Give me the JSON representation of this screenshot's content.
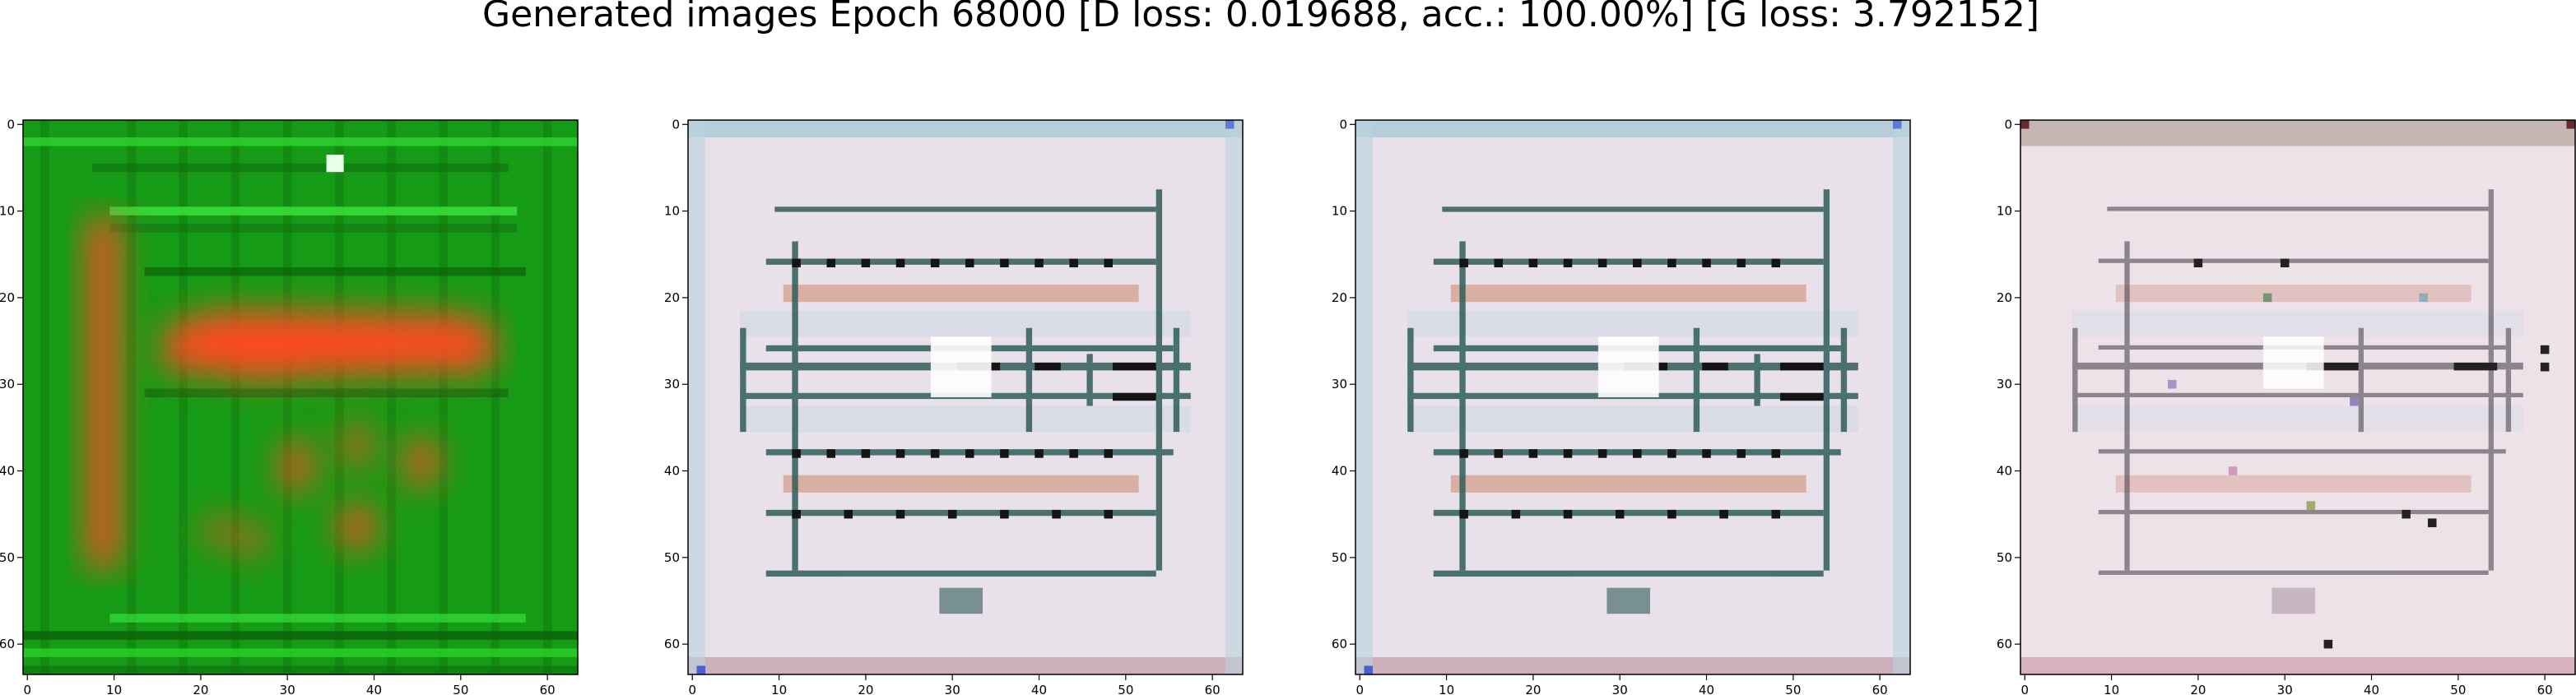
{
  "figure": {
    "title": "Generated images Epoch 68000 [D loss: 0.019688, acc.: 100.00%] [G loss: 3.792152]"
  },
  "axes_ticks": {
    "x": [
      "0",
      "10",
      "20",
      "30",
      "40",
      "50",
      "60"
    ],
    "y": [
      "0",
      "10",
      "20",
      "30",
      "40",
      "50",
      "60"
    ]
  },
  "panels": [
    {
      "content": "generated-image-green-red",
      "palette": {
        "background": "#169b16",
        "shapes": "#ff4a20",
        "stripes": "#2ed42e"
      }
    },
    {
      "content": "generated-image-floorplan-pale",
      "palette": {
        "background": "#e9e1ea",
        "grid": "#2f5d5a",
        "accent": "#d29a86"
      }
    },
    {
      "content": "generated-image-floorplan-pale",
      "palette": {
        "background": "#e9e1ea",
        "grid": "#2f5d5a",
        "accent": "#d29a86"
      }
    },
    {
      "content": "generated-image-floorplan-faint",
      "palette": {
        "background": "#ede2e8",
        "grid": "#3d3a44",
        "accent": "#d9a6a0"
      }
    }
  ]
}
